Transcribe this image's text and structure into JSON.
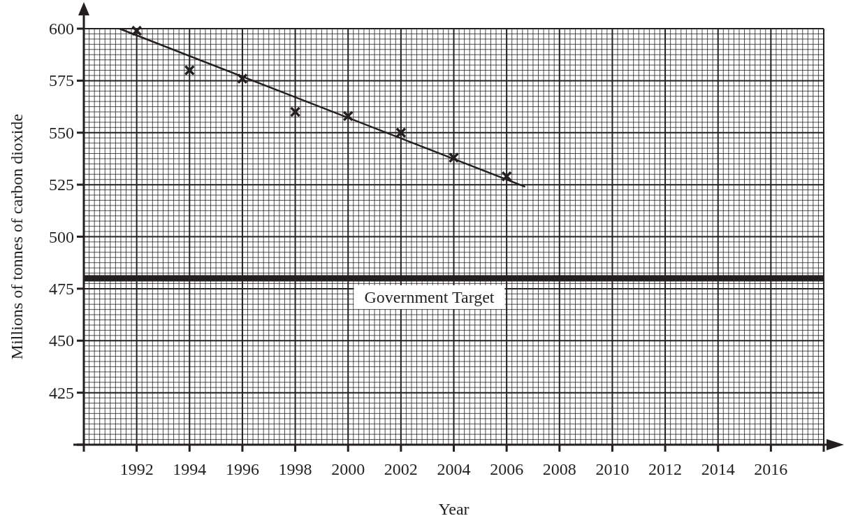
{
  "chart_data": {
    "type": "scatter",
    "xlabel": "Year",
    "ylabel": "Millions of tonnes of carbon dioxide",
    "x": [
      1992,
      1994,
      1996,
      1998,
      2000,
      2002,
      2004,
      2006
    ],
    "series": [
      {
        "color": "#231f20",
        "marker": "cross",
        "values": [
          599,
          580,
          576,
          560,
          558,
          550,
          538,
          529
        ]
      },
      {
        "type": "line",
        "color": "#231f20",
        "marker": "none",
        "line_style": "solid",
        "x": [
          1991.35,
          2006.7
        ],
        "values": [
          600,
          524
        ]
      }
    ],
    "xlim": [
      1990,
      2018
    ],
    "xticks": [
      {
        "value": 1990,
        "label": null
      },
      1992,
      1994,
      1996,
      1998,
      2000,
      2002,
      2004,
      2006,
      2008,
      2010,
      2012,
      2014,
      2016,
      {
        "value": 2018,
        "label": null
      }
    ],
    "ylim": [
      400,
      600
    ],
    "yticks": [
      {
        "value": 400,
        "label": null
      },
      425,
      450,
      475,
      500,
      525,
      550,
      575,
      600
    ],
    "grid": true,
    "ref_lines": [
      {
        "axis": "y",
        "value": 480,
        "label": "Government Target",
        "color": "#231f20",
        "line_style": "solid"
      }
    ]
  }
}
